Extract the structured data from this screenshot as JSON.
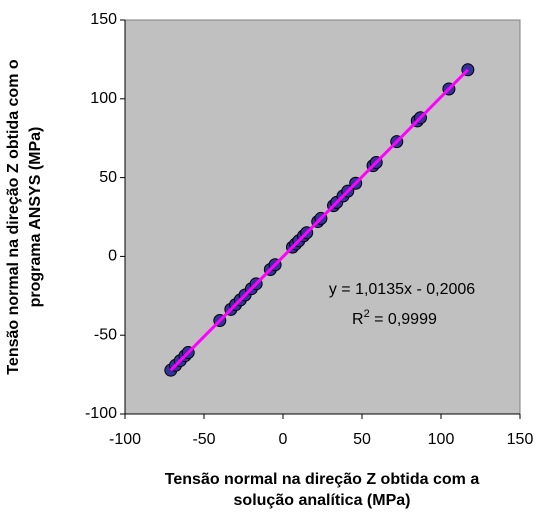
{
  "chart_data": {
    "type": "scatter",
    "xlabel": [
      "Tensão normal na direção Z obtida com a",
      "solução analítica (MPa)"
    ],
    "ylabel": [
      "Tensão normal na direção Z obtida com o",
      "programa ANSYS (MPa)"
    ],
    "xlim": [
      -100,
      150
    ],
    "xticks": [
      -100,
      -50,
      0,
      50,
      100,
      150
    ],
    "ylim": [
      -100,
      150
    ],
    "yticks": [
      -100,
      -50,
      0,
      50,
      100,
      150
    ],
    "series": [
      {
        "color": "#333399",
        "x": [
          -71,
          -68,
          -65,
          -62,
          -60,
          -40,
          -33,
          -30,
          -27,
          -24,
          -20,
          -17,
          -8,
          -5,
          6,
          8,
          10,
          13,
          15,
          22,
          24,
          32,
          34,
          38,
          41,
          46,
          57,
          59,
          72,
          85,
          87,
          105,
          117
        ],
        "y": [
          -72.2,
          -69.1,
          -66.1,
          -63.0,
          -61.0,
          -40.7,
          -33.6,
          -30.6,
          -27.6,
          -24.5,
          -20.5,
          -17.4,
          -8.3,
          -5.3,
          5.9,
          7.9,
          9.9,
          13.0,
          15.0,
          22.1,
          24.1,
          32.2,
          34.3,
          38.3,
          41.4,
          46.4,
          57.6,
          59.6,
          72.8,
          86.0,
          88.0,
          106.2,
          118.4
        ]
      }
    ],
    "trendline": {
      "color": "#ff00ff",
      "x": [
        -71,
        117
      ],
      "y": [
        -72.2,
        118.4
      ],
      "equation": "y = 1,0135x - 0,2006",
      "r_squared": {
        "base": "R",
        "superscript": "2",
        "text": " = 0,9999"
      }
    }
  }
}
